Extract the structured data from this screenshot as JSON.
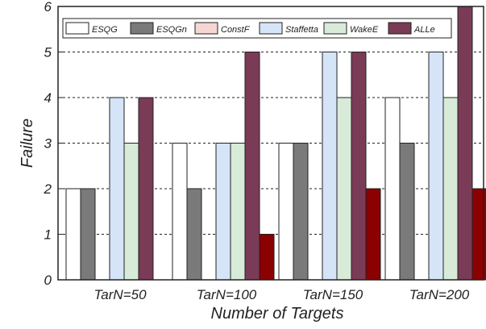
{
  "chart_data": {
    "type": "bar",
    "xlabel": "Number of Targets",
    "ylabel": "Failure",
    "ylim": [
      0,
      6
    ],
    "yticks": [
      "0",
      "1",
      "2",
      "3",
      "4",
      "5",
      "6"
    ],
    "grid": "horizontal dashed",
    "legend_position": "top",
    "categories": [
      "TarN=50",
      "TarN=100",
      "TarN=150",
      "TarN=200"
    ],
    "series": [
      {
        "name": "ESQG",
        "color": "#ffffff",
        "values": [
          2,
          3,
          3,
          4
        ]
      },
      {
        "name": "ESQGn",
        "color": "#7a7a7a",
        "values": [
          2,
          2,
          3,
          3
        ]
      },
      {
        "name": "ConstF",
        "color": "#f6d6d3",
        "values": [
          0,
          0,
          0,
          0
        ]
      },
      {
        "name": "Staffetta",
        "color": "#d6e4f8",
        "values": [
          4,
          3,
          5,
          5
        ]
      },
      {
        "name": "WakeE",
        "color": "#d8ead8",
        "values": [
          3,
          3,
          4,
          4
        ]
      },
      {
        "name": "ALLe",
        "color": "#7a3b56",
        "values": [
          4,
          5,
          5,
          6
        ]
      },
      {
        "name": "",
        "color": "#8b0000",
        "values": [
          0,
          1,
          2,
          2
        ]
      }
    ]
  }
}
